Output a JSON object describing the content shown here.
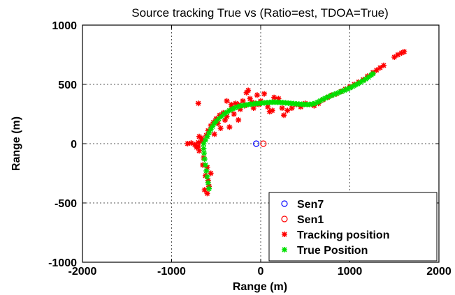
{
  "chart_data": {
    "type": "scatter",
    "title": "Source tracking True vs (Ratio=est, TDOA=True)",
    "xlabel": "Range (m)",
    "ylabel": "Range (m)",
    "xlim": [
      -2000,
      2000
    ],
    "ylim": [
      -1000,
      1000
    ],
    "xticks": [
      -2000,
      -1000,
      0,
      1000,
      2000
    ],
    "yticks": [
      -1000,
      -500,
      0,
      500,
      1000
    ],
    "xtick_labels": [
      "-2000",
      "-1000",
      "0",
      "1000",
      "2000"
    ],
    "ytick_labels": [
      "-1000",
      "-500",
      "0",
      "500",
      "1000"
    ],
    "grid": true,
    "grid_style": "dotted",
    "legend_position": "bottom-right",
    "series": [
      {
        "name": "Sen7",
        "marker": "circle-open",
        "color": "#0000ff",
        "points": [
          [
            -50,
            0
          ]
        ]
      },
      {
        "name": "Sen1",
        "marker": "circle-open",
        "color": "#ff0000",
        "points": [
          [
            30,
            0
          ]
        ]
      },
      {
        "name": "Tracking position",
        "marker": "star",
        "color": "#ff0000",
        "points": [
          [
            -820,
            0
          ],
          [
            -780,
            5
          ],
          [
            -740,
            -8
          ],
          [
            -700,
            10
          ],
          [
            -690,
            60
          ],
          [
            -660,
            45
          ],
          [
            -720,
            -30
          ],
          [
            -690,
            -60
          ],
          [
            -640,
            -120
          ],
          [
            -600,
            -200
          ],
          [
            -620,
            -270
          ],
          [
            -590,
            -310
          ],
          [
            -580,
            -360
          ],
          [
            -600,
            -420
          ],
          [
            -630,
            -390
          ],
          [
            -560,
            -250
          ],
          [
            -650,
            -180
          ],
          [
            -610,
            70
          ],
          [
            -590,
            110
          ],
          [
            -560,
            150
          ],
          [
            -530,
            180
          ],
          [
            -500,
            210
          ],
          [
            -480,
            170
          ],
          [
            -460,
            240
          ],
          [
            -420,
            260
          ],
          [
            -400,
            200
          ],
          [
            -380,
            230
          ],
          [
            -350,
            280
          ],
          [
            -320,
            300
          ],
          [
            -300,
            250
          ],
          [
            -280,
            340
          ],
          [
            -250,
            330
          ],
          [
            -230,
            290
          ],
          [
            -200,
            360
          ],
          [
            -180,
            320
          ],
          [
            -160,
            430
          ],
          [
            -140,
            450
          ],
          [
            -120,
            380
          ],
          [
            -100,
            350
          ],
          [
            -80,
            300
          ],
          [
            -60,
            340
          ],
          [
            -40,
            410
          ],
          [
            -20,
            330
          ],
          [
            0,
            360
          ],
          [
            40,
            420
          ],
          [
            80,
            310
          ],
          [
            100,
            270
          ],
          [
            130,
            280
          ],
          [
            150,
            390
          ],
          [
            200,
            380
          ],
          [
            240,
            300
          ],
          [
            260,
            240
          ],
          [
            300,
            280
          ],
          [
            350,
            300
          ],
          [
            400,
            330
          ],
          [
            450,
            310
          ],
          [
            500,
            340
          ],
          [
            550,
            330
          ],
          [
            600,
            320
          ],
          [
            650,
            340
          ],
          [
            700,
            370
          ],
          [
            750,
            390
          ],
          [
            800,
            410
          ],
          [
            850,
            420
          ],
          [
            900,
            440
          ],
          [
            950,
            460
          ],
          [
            1000,
            480
          ],
          [
            1050,
            500
          ],
          [
            1100,
            520
          ],
          [
            1150,
            540
          ],
          [
            1200,
            570
          ],
          [
            1260,
            600
          ],
          [
            1300,
            620
          ],
          [
            1340,
            640
          ],
          [
            1380,
            660
          ],
          [
            1500,
            730
          ],
          [
            1540,
            750
          ],
          [
            1580,
            765
          ],
          [
            1610,
            775
          ],
          [
            -700,
            340
          ],
          [
            -520,
            80
          ],
          [
            -450,
            130
          ],
          [
            -380,
            360
          ],
          [
            -330,
            330
          ],
          [
            -700,
            -20
          ],
          [
            -660,
            20
          ],
          [
            -350,
            140
          ],
          [
            -250,
            200
          ]
        ]
      },
      {
        "name": "True Position",
        "marker": "star",
        "color": "#00e000",
        "points": [
          [
            -580,
            -380
          ],
          [
            -590,
            -330
          ],
          [
            -600,
            -280
          ],
          [
            -610,
            -230
          ],
          [
            -620,
            -180
          ],
          [
            -630,
            -130
          ],
          [
            -635,
            -80
          ],
          [
            -640,
            -40
          ],
          [
            -640,
            0
          ],
          [
            -620,
            30
          ],
          [
            -600,
            60
          ],
          [
            -580,
            90
          ],
          [
            -560,
            120
          ],
          [
            -540,
            145
          ],
          [
            -520,
            170
          ],
          [
            -500,
            190
          ],
          [
            -470,
            210
          ],
          [
            -440,
            230
          ],
          [
            -410,
            250
          ],
          [
            -380,
            265
          ],
          [
            -350,
            280
          ],
          [
            -320,
            292
          ],
          [
            -290,
            302
          ],
          [
            -260,
            310
          ],
          [
            -230,
            318
          ],
          [
            -200,
            322
          ],
          [
            -170,
            326
          ],
          [
            -140,
            330
          ],
          [
            -110,
            333
          ],
          [
            -80,
            336
          ],
          [
            -50,
            338
          ],
          [
            -20,
            340
          ],
          [
            10,
            342
          ],
          [
            40,
            344
          ],
          [
            70,
            346
          ],
          [
            100,
            348
          ],
          [
            130,
            350
          ],
          [
            160,
            350
          ],
          [
            190,
            349
          ],
          [
            220,
            348
          ],
          [
            250,
            346
          ],
          [
            280,
            344
          ],
          [
            310,
            342
          ],
          [
            340,
            340
          ],
          [
            370,
            338
          ],
          [
            400,
            336
          ],
          [
            430,
            334
          ],
          [
            460,
            332
          ],
          [
            490,
            331
          ],
          [
            520,
            330
          ],
          [
            550,
            331
          ],
          [
            580,
            334
          ],
          [
            610,
            340
          ],
          [
            640,
            350
          ],
          [
            670,
            362
          ],
          [
            700,
            375
          ],
          [
            730,
            386
          ],
          [
            760,
            396
          ],
          [
            790,
            405
          ],
          [
            820,
            414
          ],
          [
            850,
            423
          ],
          [
            880,
            432
          ],
          [
            910,
            441
          ],
          [
            940,
            450
          ],
          [
            970,
            460
          ],
          [
            1000,
            470
          ],
          [
            1030,
            481
          ],
          [
            1060,
            493
          ],
          [
            1090,
            505
          ],
          [
            1120,
            518
          ],
          [
            1150,
            531
          ],
          [
            1180,
            545
          ],
          [
            1210,
            560
          ],
          [
            1240,
            578
          ],
          [
            1260,
            590
          ]
        ]
      }
    ]
  }
}
